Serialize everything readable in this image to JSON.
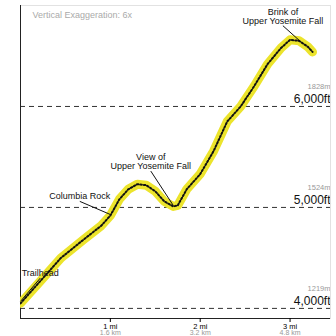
{
  "chart_data": {
    "type": "line",
    "note": "Vertical Exaggeration: 6x",
    "color": "#ece42c",
    "line_style": "dotted",
    "x": [
      0.0,
      0.2,
      0.45,
      0.7,
      0.9,
      1.0,
      1.1,
      1.2,
      1.3,
      1.4,
      1.5,
      1.6,
      1.7,
      1.75,
      1.85,
      2.0,
      2.15,
      2.3,
      2.45,
      2.6,
      2.75,
      2.9,
      3.0,
      3.1,
      3.2,
      3.25
    ],
    "values": [
      4050,
      4250,
      4500,
      4680,
      4820,
      4920,
      5080,
      5180,
      5230,
      5220,
      5160,
      5060,
      5010,
      5020,
      5180,
      5330,
      5560,
      5850,
      6000,
      6200,
      6420,
      6580,
      6660,
      6650,
      6590,
      6540
    ],
    "xlim": [
      0,
      3.45
    ],
    "ylim": [
      3900,
      7000
    ],
    "xticks": [
      {
        "value": 1,
        "label": "1 mi",
        "km": "1.6 km"
      },
      {
        "value": 2,
        "label": "2 mi",
        "km": "3.2 km"
      },
      {
        "value": 3,
        "label": "3 mi",
        "km": "4.8 km"
      }
    ],
    "yticks": [
      {
        "value": 4000,
        "label": "4,000ft",
        "metric": "1219m"
      },
      {
        "value": 5000,
        "label": "5,000ft",
        "metric": "1524m"
      },
      {
        "value": 6000,
        "label": "6,000ft",
        "metric": "1828m"
      }
    ],
    "grid": true,
    "annotations": [
      {
        "text": "Trailhead",
        "x": 0.0,
        "y": 4070,
        "label_x": 0.22,
        "label_y": 4300
      },
      {
        "text": "Columbia Rock",
        "x": 1.0,
        "y": 4930,
        "label_x": 0.66,
        "label_y": 5060
      },
      {
        "text": "View of\nUpper Yosemite Fall",
        "x": 1.7,
        "y": 5020,
        "label_x": 1.45,
        "label_y": 5360
      },
      {
        "text": "Brink of\nUpper Yosemite Fall",
        "x": 3.12,
        "y": 6640,
        "label_x": 2.92,
        "label_y": 6800
      }
    ]
  }
}
